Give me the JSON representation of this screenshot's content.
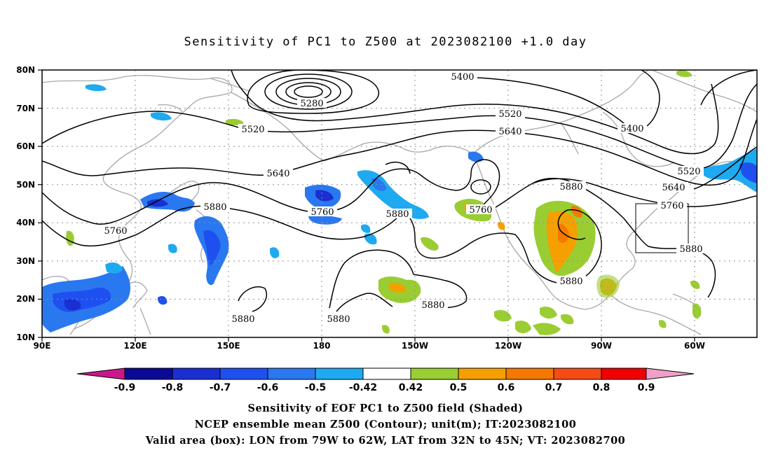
{
  "title": "Sensitivity of PC1 to Z500 at 2023082100 +1.0 day",
  "footer": {
    "line1": "Sensitivity of EOF PC1 to Z500 field (Shaded)",
    "line2": "NCEP ensemble mean Z500 (Contour); unit(m); IT:2023082100",
    "line3": "Valid area (box): LON from 79W to 62W, LAT from 32N to 45N; VT: 2023082700"
  },
  "map": {
    "lat_ticks": [
      "80N",
      "70N",
      "60N",
      "50N",
      "40N",
      "30N",
      "20N",
      "10N"
    ],
    "lon_ticks": [
      "90E",
      "120E",
      "150E",
      "180",
      "150W",
      "120W",
      "90W",
      "60W"
    ],
    "lat_range": [
      10,
      80
    ],
    "lon_range_east": [
      90,
      320
    ],
    "valid_box": {
      "lon": [
        -79,
        -62
      ],
      "lat": [
        32,
        45
      ]
    }
  },
  "contour_labels": {
    "c5280": "5280",
    "c5400a": "5400",
    "c5400b": "5400",
    "c5520a": "5520",
    "c5520b": "5520",
    "c5520c": "5520",
    "c5640a": "5640",
    "c5640b": "5640",
    "c5640c": "5640",
    "c5760a": "5760",
    "c5760b": "5760",
    "c5760c": "5760",
    "c5760d": "5760",
    "c5880a": "5880",
    "c5880b": "5880",
    "c5880c": "5880",
    "c5880d": "5880",
    "c5880e": "5880",
    "c5880f": "5880",
    "c5880g": "5880",
    "c5880h": "5880"
  },
  "colorbar": {
    "labels": [
      "-0.9",
      "-0.8",
      "-0.7",
      "-0.6",
      "-0.5",
      "-0.42",
      "0.42",
      "0.5",
      "0.6",
      "0.7",
      "0.8",
      "0.9"
    ],
    "colors": {
      "under": "#c8188a",
      "c1": "#0a0a96",
      "c2": "#1a2fd0",
      "c3": "#1e50f0",
      "c4": "#2a78f0",
      "c5": "#1eaaf0",
      "c6": "#00c8f5",
      "white": "#ffffff",
      "c7": "#9acd32",
      "c8": "#f5a000",
      "c9": "#f57800",
      "c10": "#f54b14",
      "c11": "#f00000",
      "over": "#f0a0c8"
    }
  }
}
